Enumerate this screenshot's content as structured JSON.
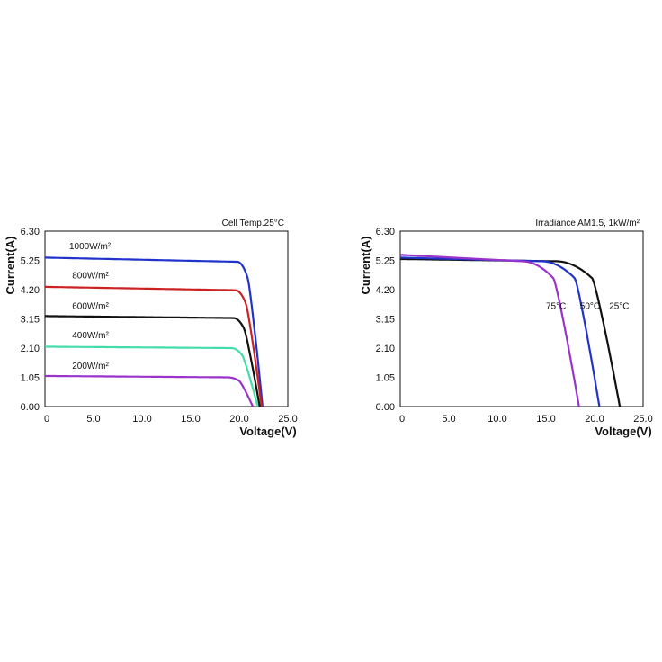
{
  "chart_data": [
    {
      "type": "line",
      "title": "",
      "annotation": "Cell Temp.25°C",
      "xlabel": "Voltage(V)",
      "ylabel": "Current(A)",
      "xlim": [
        0,
        25
      ],
      "ylim": [
        0,
        6.3
      ],
      "x_ticks": [
        "0",
        "5.0",
        "10.0",
        "15.0",
        "20.0",
        "25.0"
      ],
      "y_ticks": [
        "0.00",
        "1.05",
        "2.10",
        "3.15",
        "4.20",
        "5.25",
        "6.30"
      ],
      "grid": false,
      "series": [
        {
          "name": "1000W/m²",
          "color": "#2233cc",
          "isc": 5.35,
          "imp": 5.2,
          "vknee": 19.8,
          "vmp": 20.9,
          "voc": 22.4,
          "label": {
            "x": 2.5,
            "y": 5.65
          }
        },
        {
          "name": "800W/m²",
          "color": "#cc2222",
          "isc": 4.3,
          "imp": 4.18,
          "vknee": 19.6,
          "vmp": 20.7,
          "voc": 22.3,
          "label": {
            "x": 2.8,
            "y": 4.6
          }
        },
        {
          "name": "600W/m²",
          "color": "#111111",
          "isc": 3.25,
          "imp": 3.18,
          "vknee": 19.4,
          "vmp": 20.5,
          "voc": 22.1,
          "label": {
            "x": 2.8,
            "y": 3.5
          }
        },
        {
          "name": "400W/m²",
          "color": "#44ddaa",
          "isc": 2.15,
          "imp": 2.1,
          "vknee": 19.2,
          "vmp": 20.3,
          "voc": 21.9,
          "label": {
            "x": 2.8,
            "y": 2.45
          }
        },
        {
          "name": "200W/m²",
          "color": "#9933cc",
          "isc": 1.1,
          "imp": 1.05,
          "vknee": 18.8,
          "vmp": 20.0,
          "voc": 21.4,
          "label": {
            "x": 2.8,
            "y": 1.35
          }
        }
      ]
    },
    {
      "type": "line",
      "title": "",
      "annotation": "Irradiance AM1.5, 1kW/m²",
      "xlabel": "Voltage(V)",
      "ylabel": "Current(A)",
      "xlim": [
        0,
        25
      ],
      "ylim": [
        0,
        6.3
      ],
      "x_ticks": [
        "0",
        "5.0",
        "10.0",
        "15.0",
        "20.0",
        "25.0"
      ],
      "y_ticks": [
        "0.00",
        "1.05",
        "2.10",
        "3.15",
        "4.20",
        "5.25",
        "6.30"
      ],
      "grid": false,
      "series": [
        {
          "name": "25°C",
          "color": "#111111",
          "isc": 5.3,
          "imp": 5.22,
          "vknee": 16.0,
          "vmp": 19.8,
          "voc": 22.6,
          "label": {
            "x": 21.5,
            "y": 3.5
          }
        },
        {
          "name": "50°C",
          "color": "#2233cc",
          "isc": 5.35,
          "imp": 5.22,
          "vknee": 14.5,
          "vmp": 18.0,
          "voc": 20.5,
          "label": {
            "x": 18.5,
            "y": 3.5
          }
        },
        {
          "name": "75°C",
          "color": "#9933cc",
          "isc": 5.45,
          "imp": 5.22,
          "vknee": 12.5,
          "vmp": 15.8,
          "voc": 18.4,
          "label": {
            "x": 15.0,
            "y": 3.5
          }
        }
      ]
    }
  ]
}
